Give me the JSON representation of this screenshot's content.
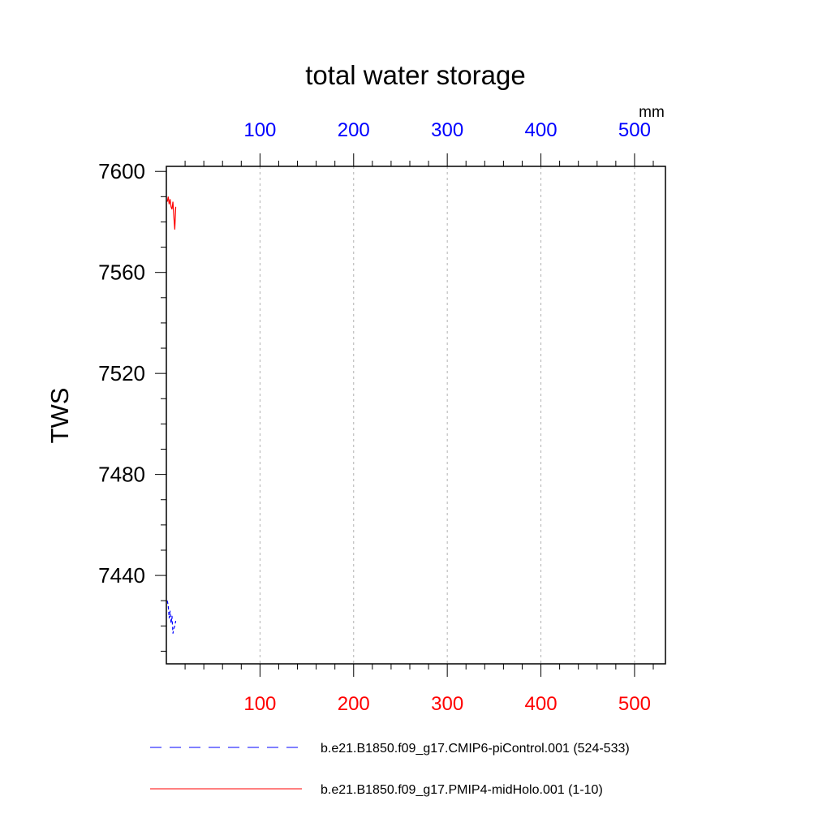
{
  "chart_data": {
    "type": "line",
    "title": "total water storage",
    "ylabel": "TWS",
    "units": "mm",
    "ylim": [
      7405,
      7602
    ],
    "yticks": [
      7600,
      7560,
      7520,
      7480,
      7440
    ],
    "grid": "vertical-dashed",
    "legend_placement": "bottom",
    "axes": {
      "top": {
        "color": "#0000ff",
        "ticks": [
          100,
          200,
          300,
          400,
          500
        ],
        "ticklabels": [
          "100",
          "200",
          "300",
          "400",
          "500"
        ],
        "xlim": [
          0,
          533
        ]
      },
      "bottom": {
        "color": "#ff0000",
        "ticks": [
          100,
          200,
          300,
          400,
          500
        ],
        "ticklabels": [
          "100",
          "200",
          "300",
          "400",
          "500"
        ],
        "xlim": [
          0,
          533
        ]
      }
    },
    "series": [
      {
        "name": "b.e21.B1850.f09_g17.CMIP6-piControl.001 (524-533)",
        "color": "#0000ff",
        "dash": true,
        "axis": "top",
        "x": [
          1,
          2,
          3,
          4,
          5,
          6,
          7,
          8,
          9,
          10
        ],
        "y": [
          7430,
          7428,
          7423,
          7426,
          7421,
          7424,
          7417,
          7419,
          7420,
          7422
        ]
      },
      {
        "name": "b.e21.B1850.f09_g17.PMIP4-midHolo.001 (1-10)",
        "color": "#ff0000",
        "dash": false,
        "axis": "bottom",
        "x": [
          1,
          2,
          3,
          4,
          5,
          6,
          7,
          8,
          9,
          10
        ],
        "y": [
          7588,
          7590,
          7587,
          7589,
          7586,
          7585,
          7588,
          7582,
          7577,
          7586
        ]
      }
    ]
  }
}
